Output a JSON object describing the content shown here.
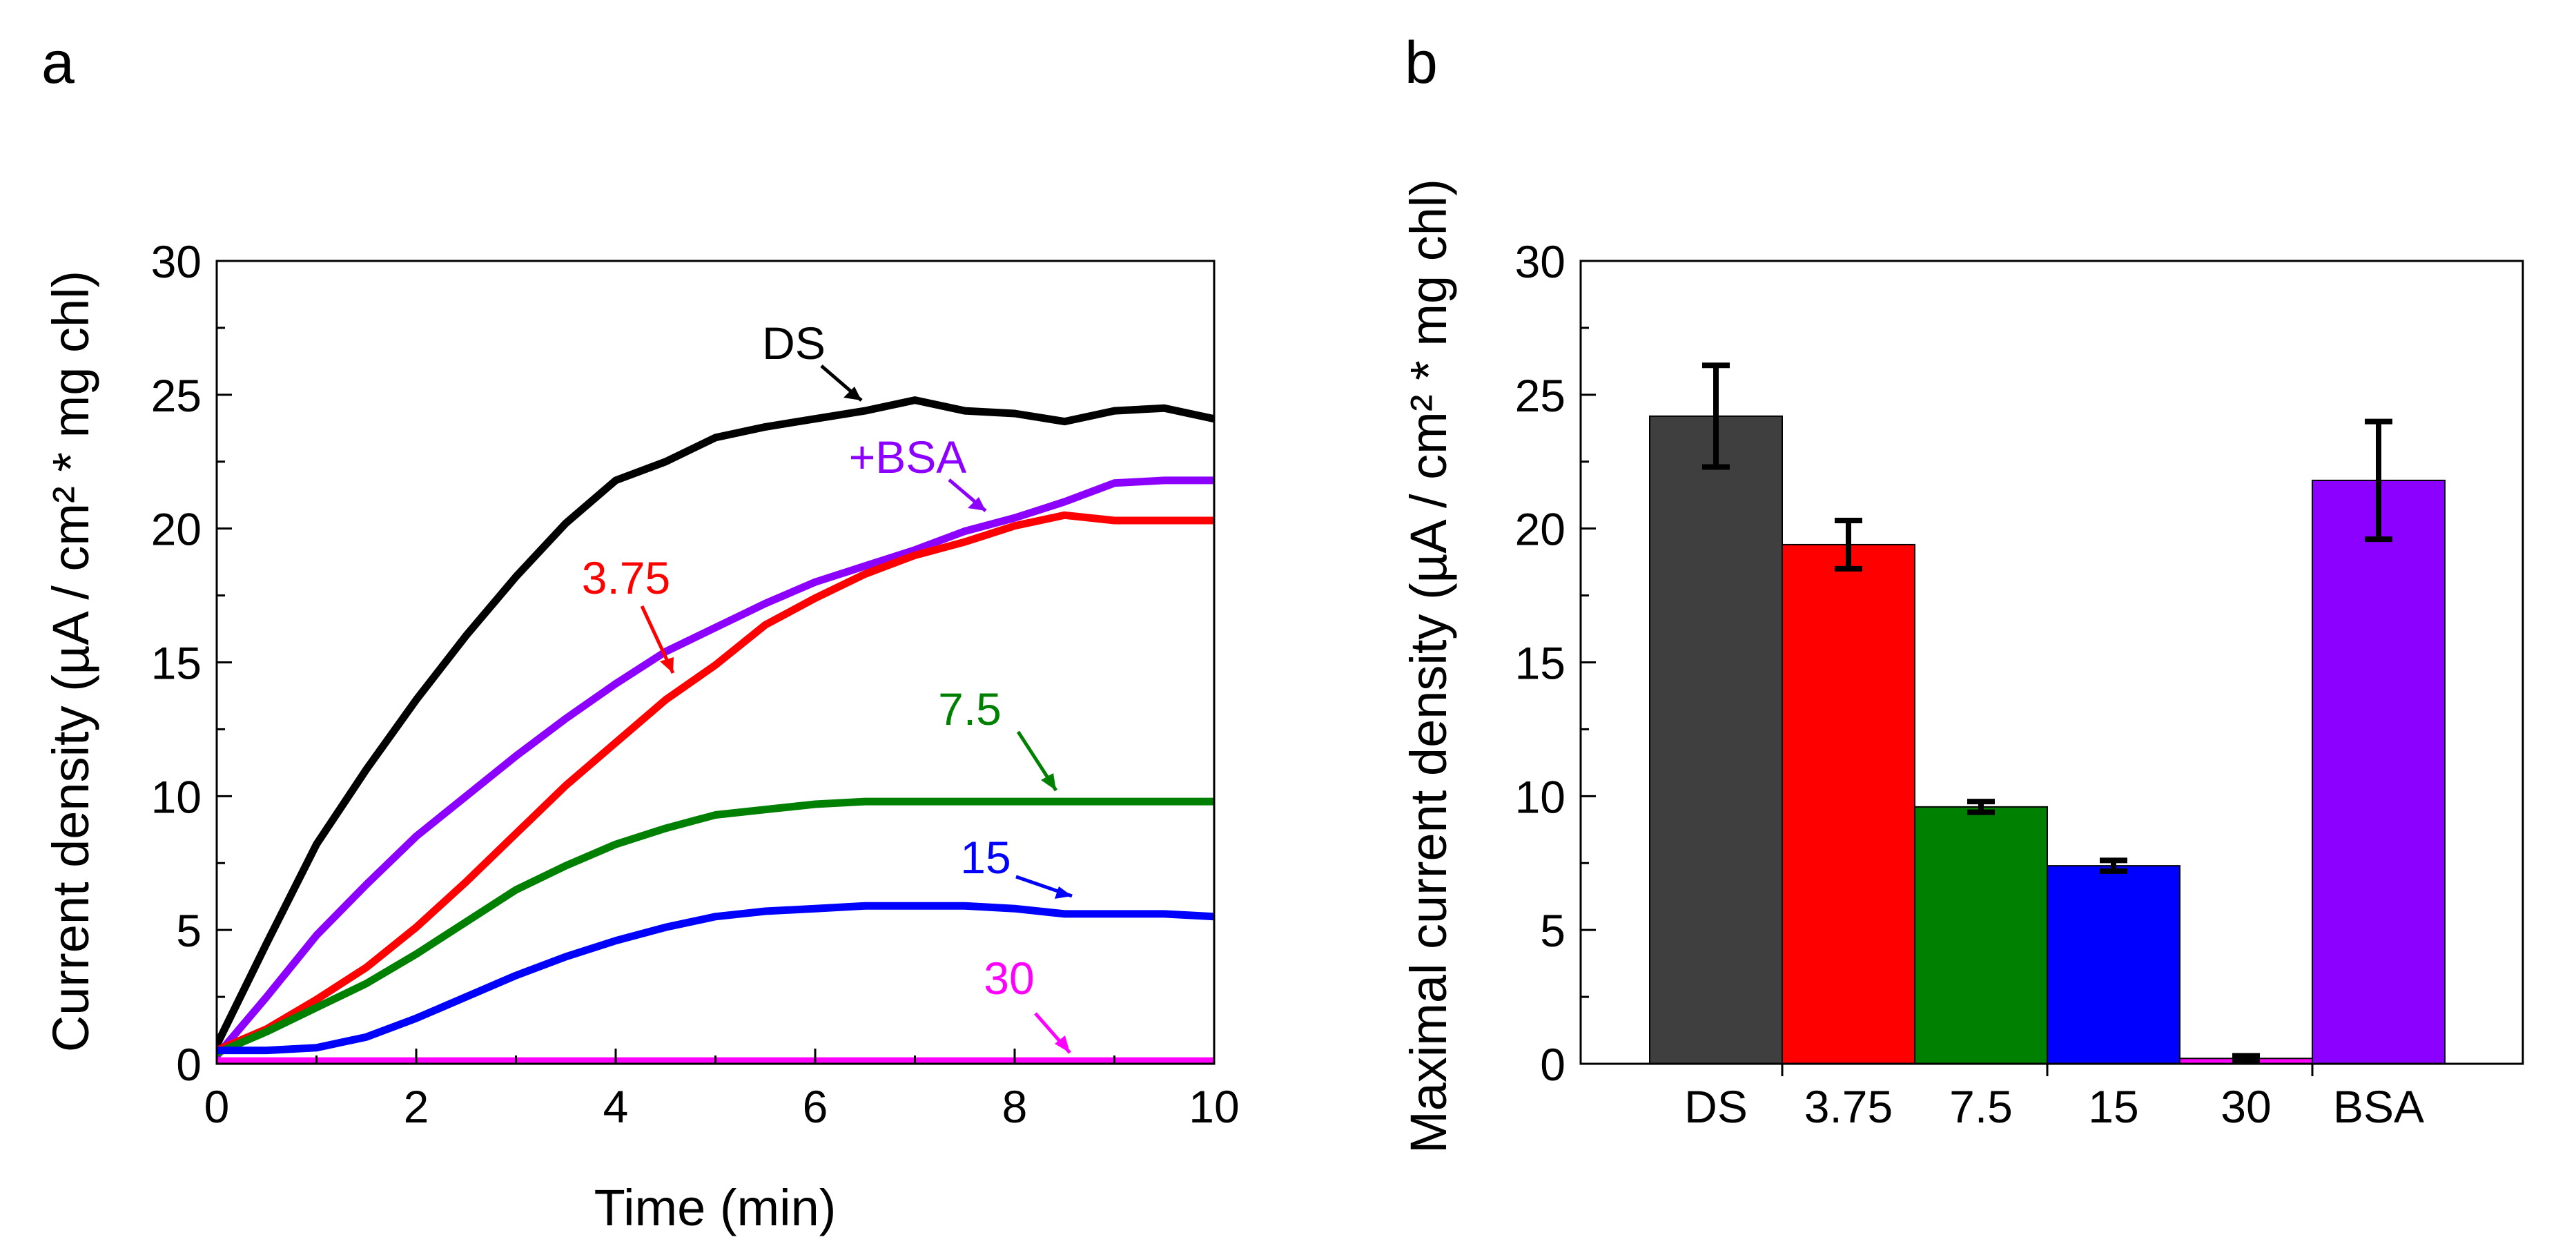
{
  "figure": {
    "panel_a_label": "a",
    "panel_b_label": "b"
  },
  "chart_data": [
    {
      "type": "line",
      "panel": "a",
      "xlabel": "Time (min)",
      "ylabel": "Current density (µA / cm² * mg chl)",
      "xlim": [
        0,
        10
      ],
      "ylim": [
        0,
        30
      ],
      "xticks": [
        0,
        2,
        4,
        6,
        8,
        10
      ],
      "yticks": [
        0,
        5,
        10,
        15,
        20,
        25,
        30
      ],
      "x_tick_labels": [
        "0",
        "2",
        "4",
        "6",
        "8",
        "10"
      ],
      "y_tick_labels": [
        "0",
        "5",
        "10",
        "15",
        "20",
        "25",
        "30"
      ],
      "grid": false,
      "series": [
        {
          "name": "DS",
          "label": "DS",
          "color": "#000000",
          "x": [
            0,
            0.5,
            1,
            1.5,
            2,
            2.5,
            3,
            3.5,
            4,
            4.5,
            5,
            5.5,
            6,
            6.5,
            7,
            7.5,
            8,
            8.5,
            9,
            9.5,
            10
          ],
          "y": [
            0.7,
            4.5,
            8.2,
            11.0,
            13.6,
            16.0,
            18.2,
            20.2,
            21.8,
            22.5,
            23.4,
            23.8,
            24.1,
            24.4,
            24.8,
            24.4,
            24.3,
            24.0,
            24.4,
            24.5,
            24.1
          ]
        },
        {
          "name": "+BSA",
          "label": "+BSA",
          "color": "#8B00FF",
          "x": [
            0,
            0.5,
            1,
            1.5,
            2,
            2.5,
            3,
            3.5,
            4,
            4.5,
            5,
            5.5,
            6,
            6.5,
            7,
            7.5,
            8,
            8.5,
            9,
            9.5,
            10
          ],
          "y": [
            0.3,
            2.5,
            4.8,
            6.7,
            8.5,
            10.0,
            11.5,
            12.9,
            14.2,
            15.4,
            16.3,
            17.2,
            18.0,
            18.6,
            19.2,
            19.9,
            20.4,
            21.0,
            21.7,
            21.8,
            21.8
          ]
        },
        {
          "name": "3.75",
          "label": "3.75",
          "color": "#FF0000",
          "x": [
            0,
            0.5,
            1,
            1.5,
            2,
            2.5,
            3,
            3.5,
            4,
            4.5,
            5,
            5.5,
            6,
            6.5,
            7,
            7.5,
            8,
            8.5,
            9,
            9.5,
            10
          ],
          "y": [
            0.5,
            1.3,
            2.4,
            3.6,
            5.1,
            6.8,
            8.6,
            10.4,
            12.0,
            13.6,
            14.9,
            16.4,
            17.4,
            18.3,
            19.0,
            19.5,
            20.1,
            20.5,
            20.3,
            20.3,
            20.3
          ]
        },
        {
          "name": "7.5",
          "label": "7.5",
          "color": "#008000",
          "x": [
            0,
            0.5,
            1,
            1.5,
            2,
            2.5,
            3,
            3.5,
            4,
            4.5,
            5,
            5.5,
            6,
            6.5,
            7,
            7.5,
            8,
            8.5,
            9,
            9.5,
            10
          ],
          "y": [
            0.4,
            1.2,
            2.1,
            3.0,
            4.1,
            5.3,
            6.5,
            7.4,
            8.2,
            8.8,
            9.3,
            9.5,
            9.7,
            9.8,
            9.8,
            9.8,
            9.8,
            9.8,
            9.8,
            9.8,
            9.8
          ]
        },
        {
          "name": "15",
          "label": "15",
          "color": "#0000FF",
          "x": [
            0,
            0.5,
            1,
            1.5,
            2,
            2.5,
            3,
            3.5,
            4,
            4.5,
            5,
            5.5,
            6,
            6.5,
            7,
            7.5,
            8,
            8.5,
            9,
            9.5,
            10
          ],
          "y": [
            0.5,
            0.5,
            0.6,
            1.0,
            1.7,
            2.5,
            3.3,
            4.0,
            4.6,
            5.1,
            5.5,
            5.7,
            5.8,
            5.9,
            5.9,
            5.9,
            5.8,
            5.6,
            5.6,
            5.6,
            5.5
          ]
        },
        {
          "name": "30",
          "label": "30",
          "color": "#FF00FF",
          "x": [
            0,
            1,
            2,
            3,
            4,
            5,
            6,
            7,
            8,
            9,
            10
          ],
          "y": [
            0.1,
            0.1,
            0.1,
            0.1,
            0.1,
            0.1,
            0.1,
            0.1,
            0.1,
            0.1,
            0.1
          ]
        }
      ]
    },
    {
      "type": "bar",
      "panel": "b",
      "xlabel": "",
      "ylabel": "Maximal current density (µA / cm² * mg chl)",
      "ylim": [
        0,
        30
      ],
      "yticks": [
        0,
        5,
        10,
        15,
        20,
        25,
        30
      ],
      "y_tick_labels": [
        "0",
        "5",
        "10",
        "15",
        "20",
        "25",
        "30"
      ],
      "grid": false,
      "categories": [
        "DS",
        "3.75",
        "7.5",
        "15",
        "30",
        "BSA"
      ],
      "values": [
        24.2,
        19.4,
        9.6,
        7.4,
        0.2,
        21.8
      ],
      "errors": [
        1.9,
        0.9,
        0.2,
        0.2,
        0.1,
        2.2
      ],
      "colors": [
        "#3F3F3F",
        "#FF0000",
        "#008000",
        "#0000FF",
        "#FF00FF",
        "#8B00FF"
      ]
    }
  ]
}
